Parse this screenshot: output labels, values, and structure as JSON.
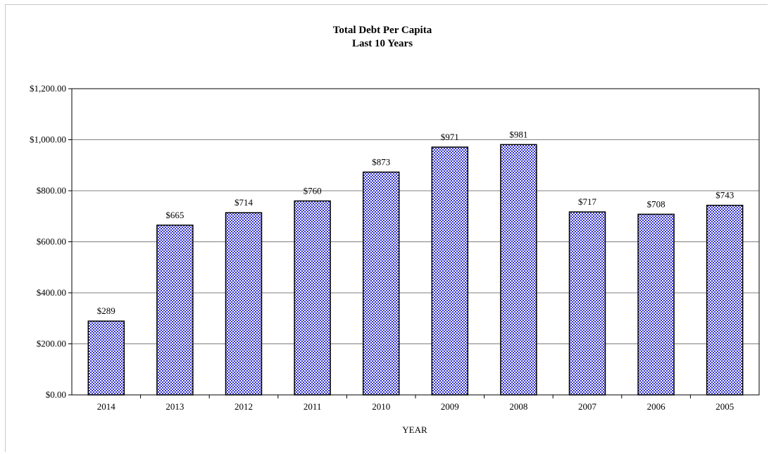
{
  "chart_data": {
    "type": "bar",
    "title": "Total Debt Per Capita",
    "subtitle": "Last 10 Years",
    "xlabel": "YEAR",
    "ylabel": "",
    "categories": [
      "2014",
      "2013",
      "2012",
      "2011",
      "2010",
      "2009",
      "2008",
      "2007",
      "2006",
      "2005"
    ],
    "values": [
      289,
      665,
      714,
      760,
      873,
      971,
      981,
      717,
      708,
      743
    ],
    "data_labels": [
      "$289",
      "$665",
      "$714",
      "$760",
      "$873",
      "$971",
      "$981",
      "$717",
      "$708",
      "$743"
    ],
    "ylim": [
      0,
      1200
    ],
    "yticks": [
      0,
      200,
      400,
      600,
      800,
      1000,
      1200
    ],
    "ytick_labels": [
      "$0.00",
      "$200.00",
      "$400.00",
      "$600.00",
      "$800.00",
      "$1,000.00",
      "$1,200.00"
    ],
    "grid": true,
    "legend": "none",
    "bar_color": "#3333cc",
    "bar_pattern": "checkered"
  }
}
